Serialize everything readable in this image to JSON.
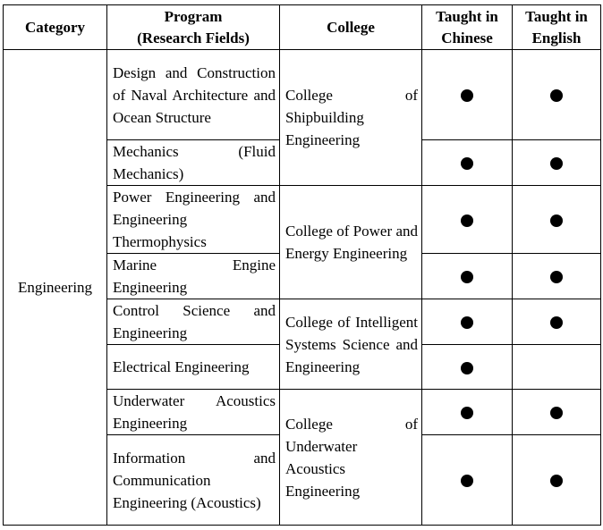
{
  "headers": {
    "category": "Category",
    "program_line1": "Program",
    "program_line2": "(Research Fields)",
    "college": "College",
    "chinese_line1": "Taught in",
    "chinese_line2": "Chinese",
    "english_line1": "Taught in",
    "english_line2": "English"
  },
  "category": "Engineering",
  "colleges": [
    "College of Shipbuilding Engineering",
    "College of Power and Energy Engineering",
    "College of Intelligent Systems Science and Engineering",
    "College of Underwater Acoustics Engineering"
  ],
  "programs": [
    {
      "name": "Design and Construction of Naval Architecture and Ocean Structure",
      "chinese": true,
      "english": true
    },
    {
      "name": "Mechanics (Fluid Mechanics)",
      "chinese": true,
      "english": true
    },
    {
      "name": "Power Engineering and Engineering Thermophysics",
      "chinese": true,
      "english": true
    },
    {
      "name": "Marine Engine Engineering",
      "chinese": true,
      "english": true
    },
    {
      "name": "Control Science and Engineering",
      "chinese": true,
      "english": true
    },
    {
      "name": "Electrical Engineering",
      "chinese": true,
      "english": false
    },
    {
      "name": "Underwater Acoustics Engineering",
      "chinese": true,
      "english": true
    },
    {
      "name": "Information and Communication Engineering (Acoustics)",
      "chinese": true,
      "english": true
    }
  ],
  "legend": {
    "marker": "filled-circle"
  }
}
